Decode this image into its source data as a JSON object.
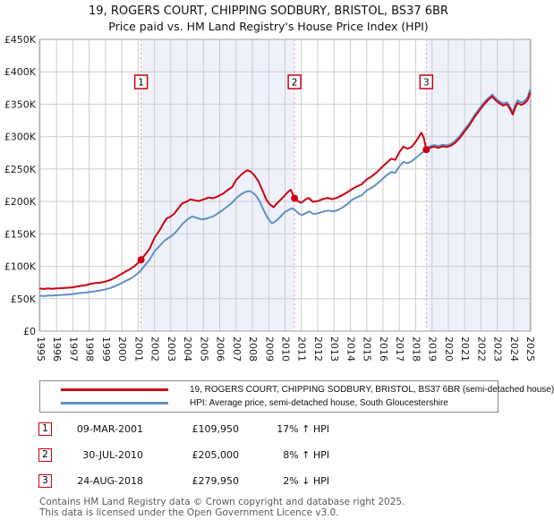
{
  "chart_data": {
    "type": "line",
    "title": "19, ROGERS COURT, CHIPPING SODBURY, BRISTOL, BS37 6BR",
    "subtitle": "Price paid vs. HM Land Registry's House Price Index (HPI)",
    "xlabel": "",
    "ylabel": "",
    "xlim": [
      1994.95,
      2025.05
    ],
    "ylim": [
      0,
      450000
    ],
    "grid": true,
    "x_ticks": [
      1995,
      1996,
      1997,
      1998,
      1999,
      2000,
      2001,
      2002,
      2003,
      2004,
      2005,
      2006,
      2007,
      2008,
      2009,
      2010,
      2011,
      2012,
      2013,
      2014,
      2015,
      2016,
      2017,
      2018,
      2019,
      2020,
      2021,
      2022,
      2023,
      2024,
      2025
    ],
    "y_ticks": [
      {
        "value": 0,
        "label": "£0"
      },
      {
        "value": 50000,
        "label": "£50K"
      },
      {
        "value": 100000,
        "label": "£100K"
      },
      {
        "value": 150000,
        "label": "£150K"
      },
      {
        "value": 200000,
        "label": "£200K"
      },
      {
        "value": 250000,
        "label": "£250K"
      },
      {
        "value": 300000,
        "label": "£300K"
      },
      {
        "value": 350000,
        "label": "£350K"
      },
      {
        "value": 400000,
        "label": "£400K"
      },
      {
        "value": 450000,
        "label": "£450K"
      }
    ],
    "colors": {
      "band": "#eef1f9",
      "grid": "#cccccc",
      "border": "#a0a0a0",
      "axis_text": "#1a1a1a",
      "sale_line": "#f29a9a",
      "marker": "#cc0011",
      "box_border": "#cc0011"
    },
    "bands": [
      {
        "from": 2001.18,
        "to": 2010.58
      },
      {
        "from": 2018.65,
        "to": 2025.05
      }
    ],
    "series": [
      {
        "name": "price-paid",
        "label": "19, ROGERS COURT, CHIPPING SODBURY, BRISTOL, BS37 6BR (semi-detached house)",
        "color": "#cc0011",
        "points": [
          [
            1995.0,
            65500
          ],
          [
            1995.25,
            65000
          ],
          [
            1995.5,
            65800
          ],
          [
            1995.75,
            65200
          ],
          [
            1996.0,
            65800
          ],
          [
            1996.3,
            66200
          ],
          [
            1996.6,
            66800
          ],
          [
            1996.9,
            67200
          ],
          [
            1997.2,
            68500
          ],
          [
            1997.5,
            69800
          ],
          [
            1997.8,
            71000
          ],
          [
            1998.1,
            73000
          ],
          [
            1998.4,
            74200
          ],
          [
            1998.7,
            74800
          ],
          [
            1999.0,
            76500
          ],
          [
            1999.3,
            79000
          ],
          [
            1999.6,
            82500
          ],
          [
            1999.9,
            87000
          ],
          [
            2000.2,
            91500
          ],
          [
            2000.5,
            95500
          ],
          [
            2000.8,
            100500
          ],
          [
            2001.0,
            105500
          ],
          [
            2001.18,
            109950
          ],
          [
            2001.4,
            117000
          ],
          [
            2001.7,
            127000
          ],
          [
            2002.0,
            144000
          ],
          [
            2002.3,
            155000
          ],
          [
            2002.55,
            166000
          ],
          [
            2002.75,
            174000
          ],
          [
            2002.95,
            176000
          ],
          [
            2003.2,
            181000
          ],
          [
            2003.45,
            189000
          ],
          [
            2003.7,
            197000
          ],
          [
            2004.0,
            200000
          ],
          [
            2004.2,
            203000
          ],
          [
            2004.45,
            202000
          ],
          [
            2004.7,
            200500
          ],
          [
            2005.0,
            203000
          ],
          [
            2005.3,
            206000
          ],
          [
            2005.6,
            205000
          ],
          [
            2005.9,
            208000
          ],
          [
            2006.2,
            212000
          ],
          [
            2006.5,
            218000
          ],
          [
            2006.75,
            222000
          ],
          [
            2007.0,
            233000
          ],
          [
            2007.3,
            241000
          ],
          [
            2007.55,
            246000
          ],
          [
            2007.7,
            248000
          ],
          [
            2007.9,
            246000
          ],
          [
            2008.1,
            241000
          ],
          [
            2008.35,
            232000
          ],
          [
            2008.6,
            218000
          ],
          [
            2008.85,
            203000
          ],
          [
            2009.05,
            196000
          ],
          [
            2009.3,
            191000
          ],
          [
            2009.5,
            197000
          ],
          [
            2009.75,
            203000
          ],
          [
            2010.0,
            210000
          ],
          [
            2010.2,
            215000
          ],
          [
            2010.35,
            218000
          ],
          [
            2010.58,
            205000
          ],
          [
            2010.8,
            200000
          ],
          [
            2011.0,
            198000
          ],
          [
            2011.25,
            203000
          ],
          [
            2011.45,
            205500
          ],
          [
            2011.7,
            199500
          ],
          [
            2012.0,
            200500
          ],
          [
            2012.3,
            203500
          ],
          [
            2012.6,
            205500
          ],
          [
            2012.9,
            203500
          ],
          [
            2013.2,
            206000
          ],
          [
            2013.5,
            209500
          ],
          [
            2013.8,
            214000
          ],
          [
            2014.1,
            219000
          ],
          [
            2014.4,
            223000
          ],
          [
            2014.7,
            226500
          ],
          [
            2015.0,
            234000
          ],
          [
            2015.3,
            238500
          ],
          [
            2015.6,
            244500
          ],
          [
            2015.9,
            252000
          ],
          [
            2016.2,
            259000
          ],
          [
            2016.5,
            266000
          ],
          [
            2016.75,
            264000
          ],
          [
            2017.0,
            276000
          ],
          [
            2017.25,
            284500
          ],
          [
            2017.5,
            281500
          ],
          [
            2017.75,
            284000
          ],
          [
            2018.0,
            292000
          ],
          [
            2018.2,
            300000
          ],
          [
            2018.35,
            306000
          ],
          [
            2018.5,
            298000
          ],
          [
            2018.65,
            279950
          ],
          [
            2018.9,
            283000
          ],
          [
            2019.15,
            284500
          ],
          [
            2019.4,
            282500
          ],
          [
            2019.65,
            285000
          ],
          [
            2019.9,
            284000
          ],
          [
            2020.15,
            286000
          ],
          [
            2020.4,
            290000
          ],
          [
            2020.7,
            298000
          ],
          [
            2021.0,
            308000
          ],
          [
            2021.3,
            318000
          ],
          [
            2021.6,
            330000
          ],
          [
            2021.9,
            340000
          ],
          [
            2022.2,
            350000
          ],
          [
            2022.45,
            357000
          ],
          [
            2022.7,
            362000
          ],
          [
            2022.9,
            356000
          ],
          [
            2023.1,
            352000
          ],
          [
            2023.35,
            348000
          ],
          [
            2023.6,
            350000
          ],
          [
            2023.75,
            344000
          ],
          [
            2023.95,
            334000
          ],
          [
            2024.1,
            345000
          ],
          [
            2024.25,
            352000
          ],
          [
            2024.45,
            349000
          ],
          [
            2024.65,
            351000
          ],
          [
            2024.85,
            356000
          ],
          [
            2025.0,
            367000
          ]
        ]
      },
      {
        "name": "hpi",
        "label": "HPI: Average price, semi-detached house, South Gloucestershire",
        "color": "#6090c5",
        "points": [
          [
            1995.0,
            54500
          ],
          [
            1995.25,
            54200
          ],
          [
            1995.5,
            54800
          ],
          [
            1995.75,
            55000
          ],
          [
            1996.0,
            55300
          ],
          [
            1996.3,
            55800
          ],
          [
            1996.6,
            56300
          ],
          [
            1996.9,
            57000
          ],
          [
            1997.2,
            58000
          ],
          [
            1997.5,
            58800
          ],
          [
            1997.8,
            59500
          ],
          [
            1998.1,
            60500
          ],
          [
            1998.4,
            61500
          ],
          [
            1998.7,
            62800
          ],
          [
            1999.0,
            64500
          ],
          [
            1999.3,
            66500
          ],
          [
            1999.6,
            69500
          ],
          [
            1999.9,
            73000
          ],
          [
            2000.2,
            77000
          ],
          [
            2000.5,
            80500
          ],
          [
            2000.8,
            85500
          ],
          [
            2001.0,
            89500
          ],
          [
            2001.18,
            94000
          ],
          [
            2001.4,
            101000
          ],
          [
            2001.7,
            110000
          ],
          [
            2002.0,
            123000
          ],
          [
            2002.3,
            131000
          ],
          [
            2002.55,
            138000
          ],
          [
            2002.75,
            142000
          ],
          [
            2002.95,
            145000
          ],
          [
            2003.2,
            150000
          ],
          [
            2003.45,
            157000
          ],
          [
            2003.7,
            165000
          ],
          [
            2004.0,
            172000
          ],
          [
            2004.3,
            177000
          ],
          [
            2004.55,
            175000
          ],
          [
            2004.8,
            173000
          ],
          [
            2005.0,
            172500
          ],
          [
            2005.3,
            174500
          ],
          [
            2005.6,
            177000
          ],
          [
            2005.9,
            182000
          ],
          [
            2006.2,
            187000
          ],
          [
            2006.5,
            193000
          ],
          [
            2006.75,
            198000
          ],
          [
            2007.0,
            205000
          ],
          [
            2007.3,
            211000
          ],
          [
            2007.55,
            214500
          ],
          [
            2007.8,
            216000
          ],
          [
            2008.0,
            214000
          ],
          [
            2008.2,
            209500
          ],
          [
            2008.45,
            200000
          ],
          [
            2008.7,
            186000
          ],
          [
            2008.95,
            174000
          ],
          [
            2009.2,
            166000
          ],
          [
            2009.45,
            170000
          ],
          [
            2009.7,
            176000
          ],
          [
            2010.0,
            184000
          ],
          [
            2010.25,
            187500
          ],
          [
            2010.45,
            189500
          ],
          [
            2010.65,
            186000
          ],
          [
            2010.85,
            181000
          ],
          [
            2011.05,
            179000
          ],
          [
            2011.3,
            182500
          ],
          [
            2011.5,
            184500
          ],
          [
            2011.75,
            180500
          ],
          [
            2012.05,
            182000
          ],
          [
            2012.35,
            184500
          ],
          [
            2012.65,
            186000
          ],
          [
            2012.95,
            184500
          ],
          [
            2013.25,
            187000
          ],
          [
            2013.55,
            191000
          ],
          [
            2013.85,
            196500
          ],
          [
            2014.1,
            202500
          ],
          [
            2014.4,
            206500
          ],
          [
            2014.7,
            209500
          ],
          [
            2015.0,
            217000
          ],
          [
            2015.3,
            221000
          ],
          [
            2015.6,
            226500
          ],
          [
            2015.9,
            233000
          ],
          [
            2016.2,
            240000
          ],
          [
            2016.5,
            245500
          ],
          [
            2016.75,
            244000
          ],
          [
            2017.0,
            254000
          ],
          [
            2017.25,
            261000
          ],
          [
            2017.5,
            259000
          ],
          [
            2017.75,
            262000
          ],
          [
            2018.0,
            267000
          ],
          [
            2018.25,
            272000
          ],
          [
            2018.5,
            277000
          ],
          [
            2018.65,
            281000
          ],
          [
            2018.9,
            285500
          ],
          [
            2019.15,
            287000
          ],
          [
            2019.4,
            285500
          ],
          [
            2019.65,
            287500
          ],
          [
            2019.9,
            286500
          ],
          [
            2020.15,
            288500
          ],
          [
            2020.4,
            293000
          ],
          [
            2020.7,
            301000
          ],
          [
            2021.0,
            311000
          ],
          [
            2021.3,
            321000
          ],
          [
            2021.6,
            333000
          ],
          [
            2021.9,
            343000
          ],
          [
            2022.2,
            353000
          ],
          [
            2022.45,
            359500
          ],
          [
            2022.7,
            365000
          ],
          [
            2022.9,
            359000
          ],
          [
            2023.1,
            355000
          ],
          [
            2023.35,
            351000
          ],
          [
            2023.6,
            353000
          ],
          [
            2023.75,
            347000
          ],
          [
            2023.95,
            338000
          ],
          [
            2024.1,
            349000
          ],
          [
            2024.25,
            356000
          ],
          [
            2024.45,
            352500
          ],
          [
            2024.65,
            354500
          ],
          [
            2024.85,
            360000
          ],
          [
            2025.0,
            372000
          ]
        ]
      }
    ],
    "sales": [
      {
        "num": "1",
        "year": 2001.18,
        "price": 109950,
        "date": "09-MAR-2001",
        "price_label": "£109,950",
        "vs_hpi": "17% ↑ HPI"
      },
      {
        "num": "2",
        "year": 2010.58,
        "price": 205000,
        "date": "30-JUL-2010",
        "price_label": "£205,000",
        "vs_hpi": "8% ↑ HPI"
      },
      {
        "num": "3",
        "year": 2018.65,
        "price": 279950,
        "date": "24-AUG-2018",
        "price_label": "£279,950",
        "vs_hpi": "2% ↓ HPI"
      }
    ]
  },
  "footer": {
    "line1": "Contains HM Land Registry data © Crown copyright and database right 2025.",
    "line2": "This data is licensed under the Open Government Licence v3.0."
  }
}
